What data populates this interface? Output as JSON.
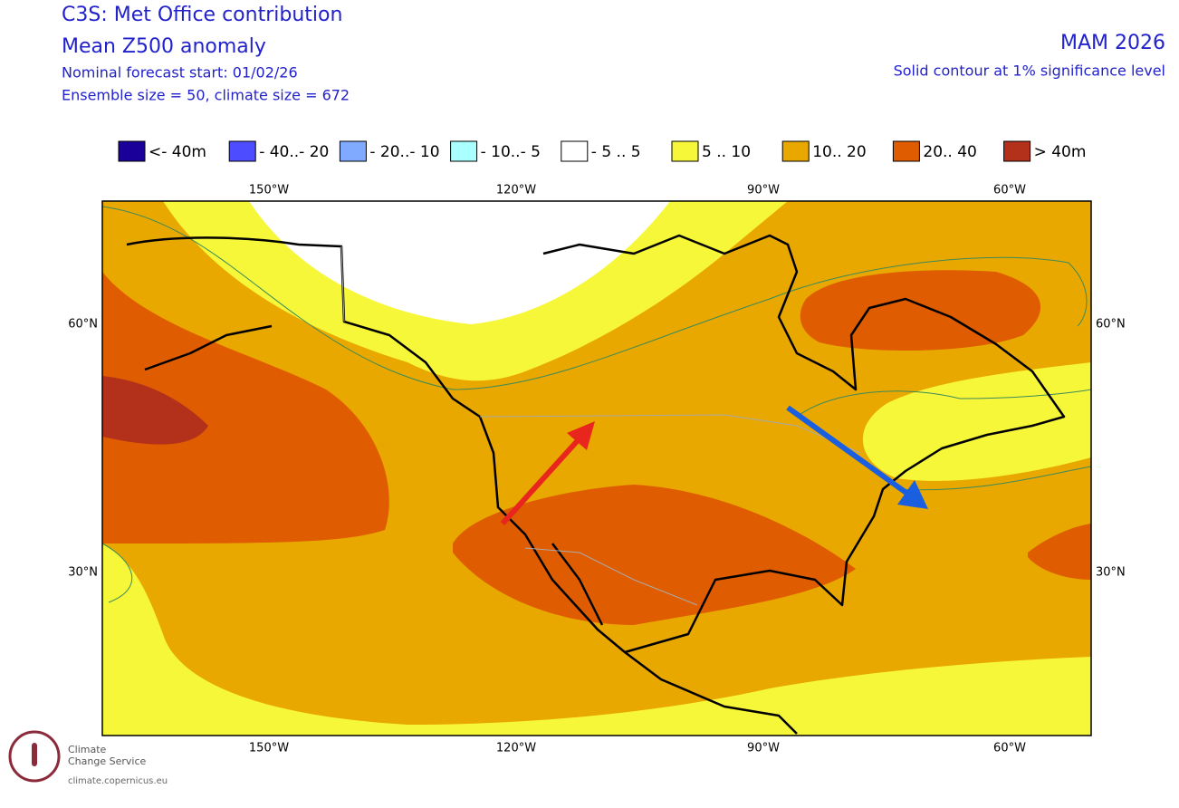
{
  "header": {
    "title": "C3S: Met Office contribution",
    "subtitle": "Mean Z500 anomaly",
    "forecast_start": "Nominal forecast start: 01/02/26",
    "ensemble": "Ensemble size = 50, climate size = 672",
    "season": "MAM 2026",
    "significance": "Solid contour at 1% significance level"
  },
  "legend": [
    {
      "label": "<- 40m",
      "color": "#1a0099"
    },
    {
      "label": "- 40..- 20",
      "color": "#4d4dff"
    },
    {
      "label": "- 20..- 10",
      "color": "#80aaff"
    },
    {
      "label": "- 10..- 5",
      "color": "#aaffff"
    },
    {
      "label": "- 5 .. 5",
      "color": "#ffffff"
    },
    {
      "label": "5 .. 10",
      "color": "#f7f73a"
    },
    {
      "label": "10.. 20",
      "color": "#e8a800"
    },
    {
      "label": "20.. 40",
      "color": "#e05c00"
    },
    {
      "label": ">  40m",
      "color": "#b3301a"
    }
  ],
  "map": {
    "longitudes": [
      "150°W",
      "120°W",
      "90°W",
      "60°W"
    ],
    "latitudes": [
      "60°N",
      "30°N"
    ]
  },
  "logo": {
    "line1": "Climate",
    "line2": "Change Service",
    "url": "climate.copernicus.eu"
  }
}
